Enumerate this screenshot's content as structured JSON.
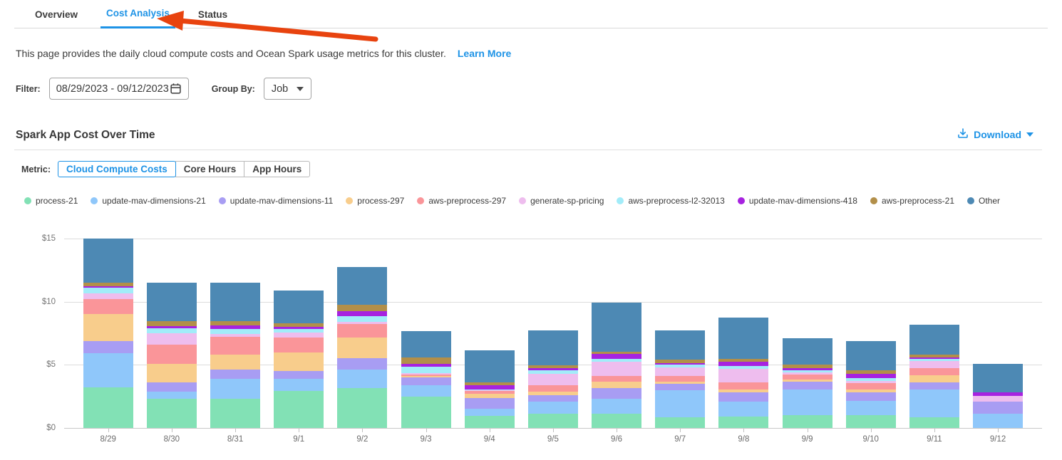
{
  "colors": {
    "accent": "#1e93e6",
    "annotation_arrow": "#e8430f",
    "grid": "#dcdcdc",
    "axis_text": "#757575"
  },
  "tabs": [
    {
      "label": "Overview",
      "active": false
    },
    {
      "label": "Cost Analysis",
      "active": true
    },
    {
      "label": "Status",
      "active": false
    }
  ],
  "description": {
    "text": "This page provides the daily cloud compute costs and Ocean Spark usage metrics for this cluster.",
    "learn_more": "Learn More"
  },
  "filter": {
    "label": "Filter:",
    "date_range": "08/29/2023  -  09/12/2023"
  },
  "group_by": {
    "label": "Group By:",
    "value": "Job"
  },
  "section": {
    "title": "Spark App Cost Over Time",
    "download_label": "Download"
  },
  "metric": {
    "label": "Metric:",
    "options": [
      {
        "label": "Cloud Compute Costs",
        "active": true
      },
      {
        "label": "Core Hours",
        "active": false
      },
      {
        "label": "App Hours",
        "active": false
      }
    ]
  },
  "chart_data": {
    "type": "bar",
    "stacked": true,
    "title": "Spark App Cost Over Time",
    "xlabel": "",
    "ylabel": "",
    "ylim": [
      0,
      15
    ],
    "y_tick_values": [
      0,
      5,
      10,
      15
    ],
    "y_tick_labels": [
      "$0",
      "$5",
      "$10",
      "$15"
    ],
    "grid": "horizontal",
    "legend_position": "top",
    "categories": [
      "8/29",
      "8/30",
      "8/31",
      "9/1",
      "9/2",
      "9/3",
      "9/4",
      "9/5",
      "9/6",
      "9/7",
      "9/8",
      "9/9",
      "9/10",
      "9/11",
      "9/12"
    ],
    "series": [
      {
        "name": "process-21",
        "color": "#82e1b5",
        "values": [
          3.2,
          2.3,
          2.3,
          2.95,
          3.15,
          2.5,
          0.95,
          1.1,
          1.1,
          0.85,
          0.9,
          1.0,
          1.0,
          0.85,
          0.0
        ]
      },
      {
        "name": "update-mav-dimensions-21",
        "color": "#8fc7fa",
        "values": [
          2.7,
          0.55,
          1.6,
          0.95,
          1.5,
          0.9,
          0.55,
          1.0,
          1.2,
          2.15,
          1.2,
          2.05,
          1.15,
          2.2,
          1.15
        ]
      },
      {
        "name": "update-mav-dimensions-11",
        "color": "#a89df3",
        "values": [
          1.0,
          0.75,
          0.75,
          0.6,
          0.85,
          0.6,
          0.85,
          0.5,
          0.85,
          0.5,
          0.7,
          0.6,
          0.65,
          0.55,
          0.95
        ]
      },
      {
        "name": "process-297",
        "color": "#f8cd8c",
        "values": [
          2.1,
          1.5,
          1.15,
          1.5,
          1.65,
          0.1,
          0.35,
          0.25,
          0.5,
          0.15,
          0.25,
          0.2,
          0.25,
          0.55,
          0.0
        ]
      },
      {
        "name": "aws-preprocess-297",
        "color": "#fa9599",
        "values": [
          1.2,
          1.5,
          1.4,
          1.15,
          1.1,
          0.15,
          0.25,
          0.55,
          0.45,
          0.45,
          0.55,
          0.4,
          0.5,
          0.6,
          0.0
        ]
      },
      {
        "name": "generate-sp-pricing",
        "color": "#eebdee",
        "values": [
          0.45,
          0.9,
          0.25,
          0.4,
          0.15,
          0.1,
          0.05,
          0.9,
          1.15,
          0.7,
          1.1,
          0.15,
          0.15,
          0.55,
          0.45
        ]
      },
      {
        "name": "aws-preprocess-l2-32013",
        "color": "#a2ecf9",
        "values": [
          0.45,
          0.4,
          0.4,
          0.3,
          0.45,
          0.5,
          0.05,
          0.25,
          0.25,
          0.2,
          0.2,
          0.15,
          0.25,
          0.15,
          0.0
        ]
      },
      {
        "name": "update-mav-dimensions-418",
        "color": "#a722e0",
        "values": [
          0.15,
          0.15,
          0.3,
          0.15,
          0.4,
          0.25,
          0.35,
          0.2,
          0.35,
          0.15,
          0.35,
          0.2,
          0.35,
          0.15,
          0.3
        ]
      },
      {
        "name": "aws-preprocess-21",
        "color": "#b28f49",
        "values": [
          0.25,
          0.4,
          0.3,
          0.3,
          0.5,
          0.5,
          0.2,
          0.2,
          0.2,
          0.25,
          0.2,
          0.25,
          0.25,
          0.2,
          0.0
        ]
      },
      {
        "name": "Other",
        "color": "#4d89b4",
        "values": [
          3.5,
          3.05,
          3.05,
          2.6,
          3.0,
          2.1,
          2.55,
          2.8,
          3.9,
          2.35,
          3.3,
          2.1,
          2.35,
          2.4,
          2.25
        ]
      }
    ]
  }
}
